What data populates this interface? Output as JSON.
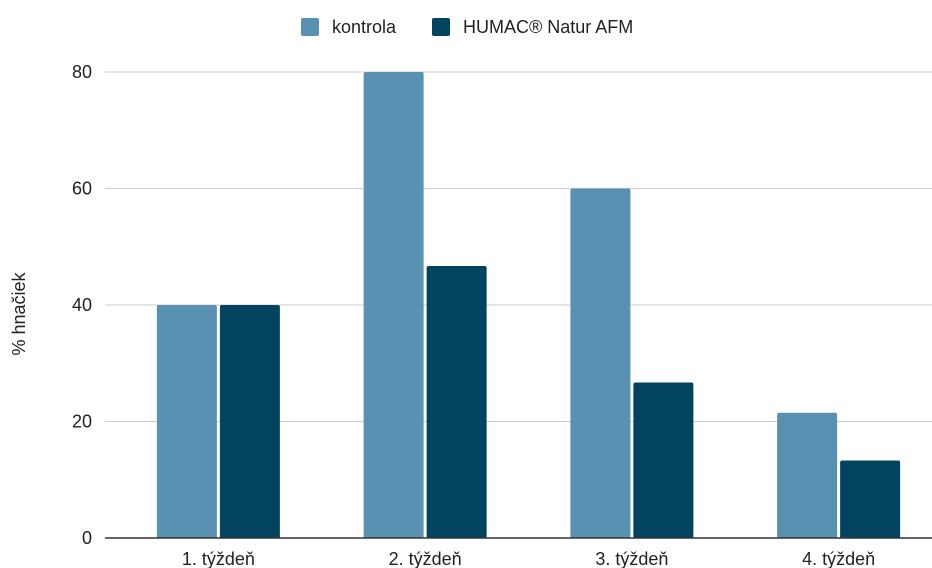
{
  "colors": {
    "kontrola": "#5891b1",
    "humac": "#02445f",
    "grid": "#cccccc",
    "baseline": "#333333"
  },
  "chart_data": {
    "type": "bar",
    "categories": [
      "1. týždeň",
      "2. týždeň",
      "3. týždeň",
      "4. týždeň"
    ],
    "series": [
      {
        "name": "kontrola",
        "values": [
          40,
          80,
          60,
          21.5
        ]
      },
      {
        "name": "HUMAC® Natur AFM",
        "values": [
          40,
          46.7,
          26.7,
          13.3
        ]
      }
    ],
    "ylabel": "% hnačiek",
    "ylim": [
      0,
      80
    ],
    "yticks": [
      "0",
      "20",
      "40",
      "60",
      "80"
    ],
    "grid": true,
    "legend": "top-center"
  }
}
